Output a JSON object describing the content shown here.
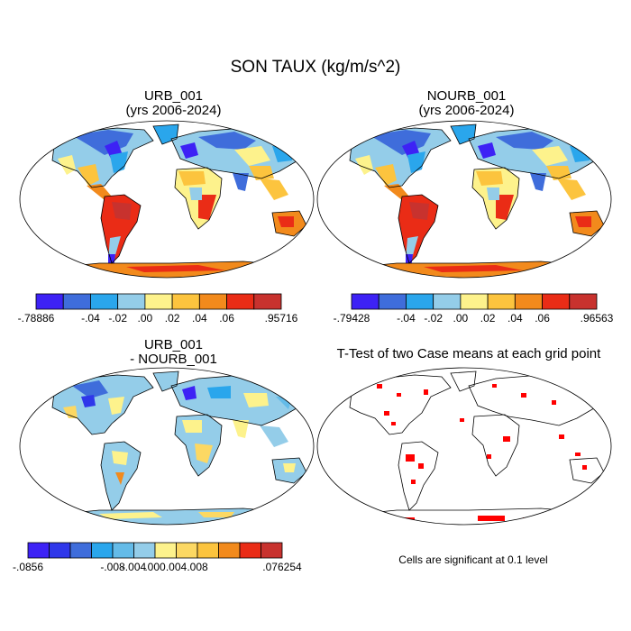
{
  "title": "SON TAUX (kg/m/s^2)",
  "panels": [
    {
      "title_line1": "URB_001",
      "title_line2": "(yrs 2006-2024)"
    },
    {
      "title_line1": "NOURB_001",
      "title_line2": "(yrs 2006-2024)"
    },
    {
      "title_line1": "URB_001",
      "title_line2": "- NOURB_001"
    },
    {
      "title_line1": "T-Test of two Case means at each grid point",
      "title_line2": ""
    }
  ],
  "colorbars": {
    "urb": {
      "colors": [
        "#3d22f5",
        "#3f6ddb",
        "#2aa6ec",
        "#94cde9",
        "#fdf28c",
        "#fcc43e",
        "#f28a1c",
        "#ea2c16",
        "#c8322e"
      ],
      "labels": [
        "-.78886",
        "-.04",
        "-.02",
        ".00",
        ".02",
        ".04",
        ".06",
        ".95716"
      ]
    },
    "nourb": {
      "colors": [
        "#3d22f5",
        "#3f6ddb",
        "#2aa6ec",
        "#94cde9",
        "#fdf28c",
        "#fcc43e",
        "#f28a1c",
        "#ea2c16",
        "#c8322e"
      ],
      "labels": [
        "-.79428",
        "-.04",
        "-.02",
        ".00",
        ".02",
        ".04",
        ".06",
        ".96563"
      ]
    },
    "diff": {
      "colors": [
        "#3d22f5",
        "#2f37ea",
        "#3f6ddb",
        "#2aa6ec",
        "#64bbe8",
        "#94cde9",
        "#fdf28c",
        "#fcd863",
        "#fcc43e",
        "#f28a1c",
        "#ea2c16",
        "#c8322e"
      ],
      "labels": [
        "-.0856",
        "-.008",
        "-.004",
        ".000",
        ".004",
        ".008",
        ".076254"
      ]
    }
  },
  "significance_note": "Cells are significant at 0.1 level",
  "significance_color": "#ff0000",
  "ocean_color": "#ffffff"
}
